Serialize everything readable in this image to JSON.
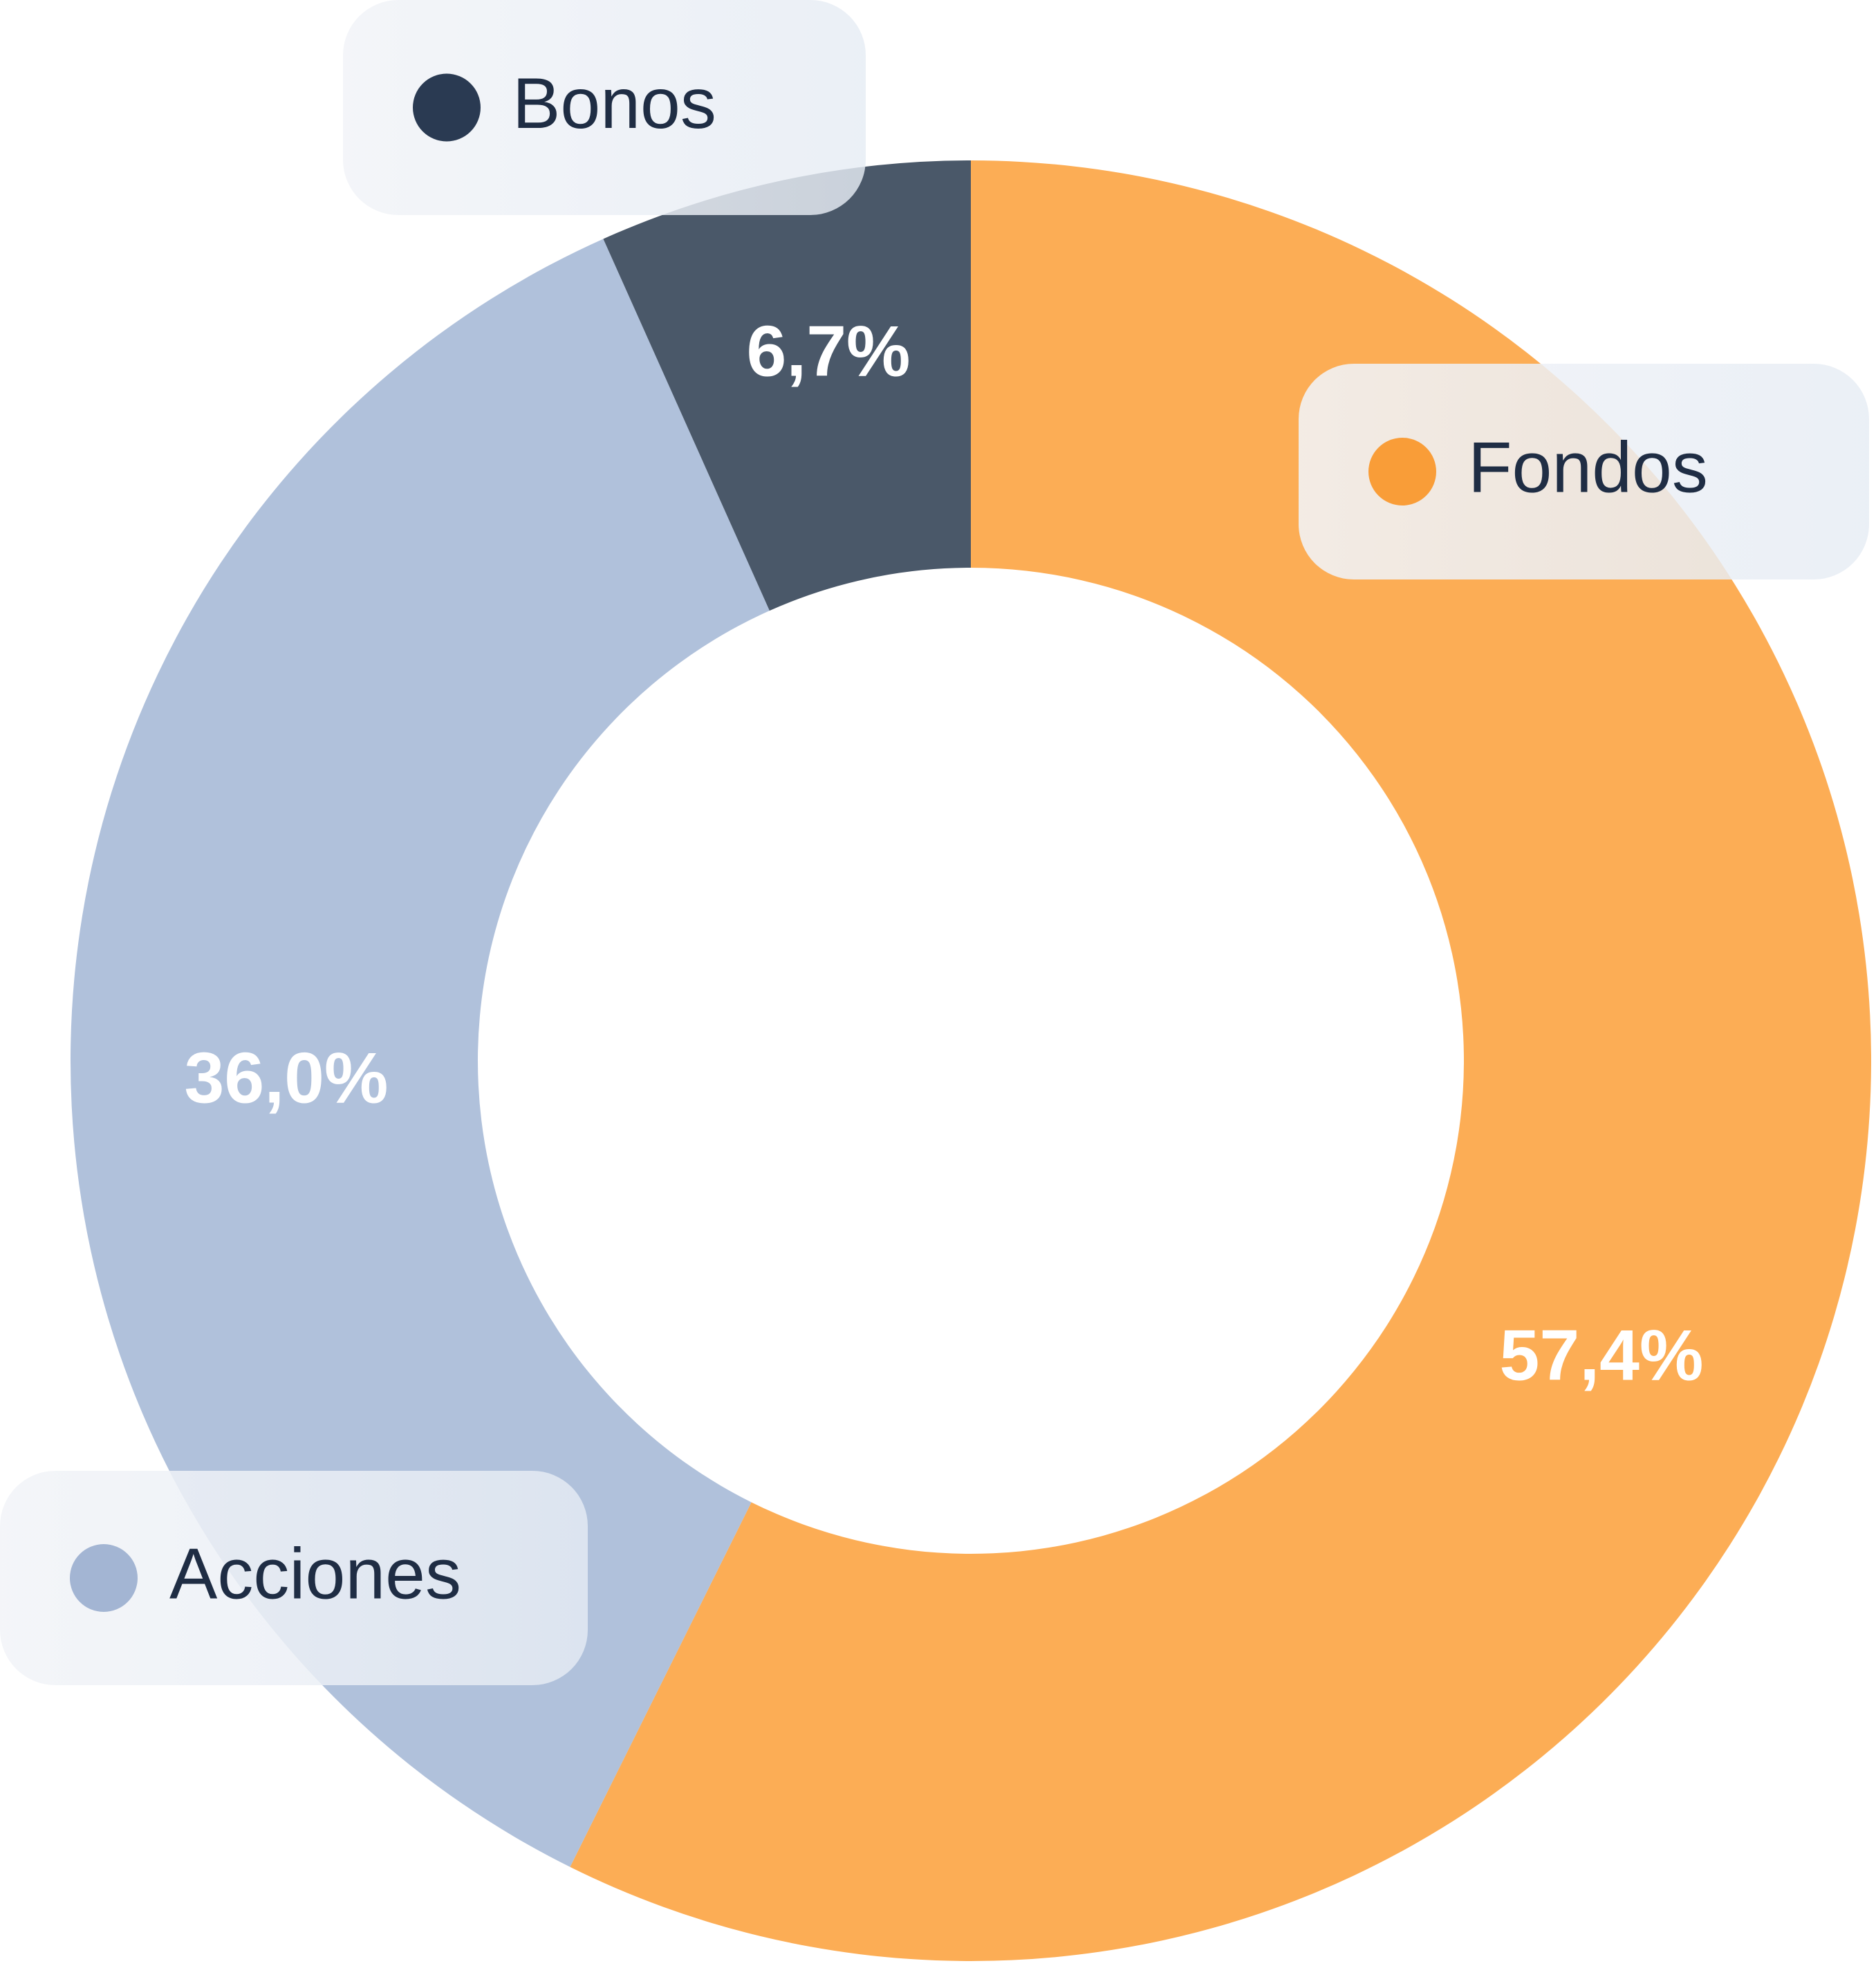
{
  "chart_data": {
    "type": "donut",
    "categories": [
      "Fondos",
      "Acciones",
      "Bonos"
    ],
    "values": [
      57.4,
      36.0,
      6.7
    ],
    "value_labels": [
      "57,4%",
      "36,0%",
      "6,7%"
    ],
    "colors": [
      "#fcad55",
      "#b0c1db",
      "#4a5869"
    ],
    "legend_colors": [
      "#f99d38",
      "#a3b5d3",
      "#2a3a52"
    ]
  }
}
